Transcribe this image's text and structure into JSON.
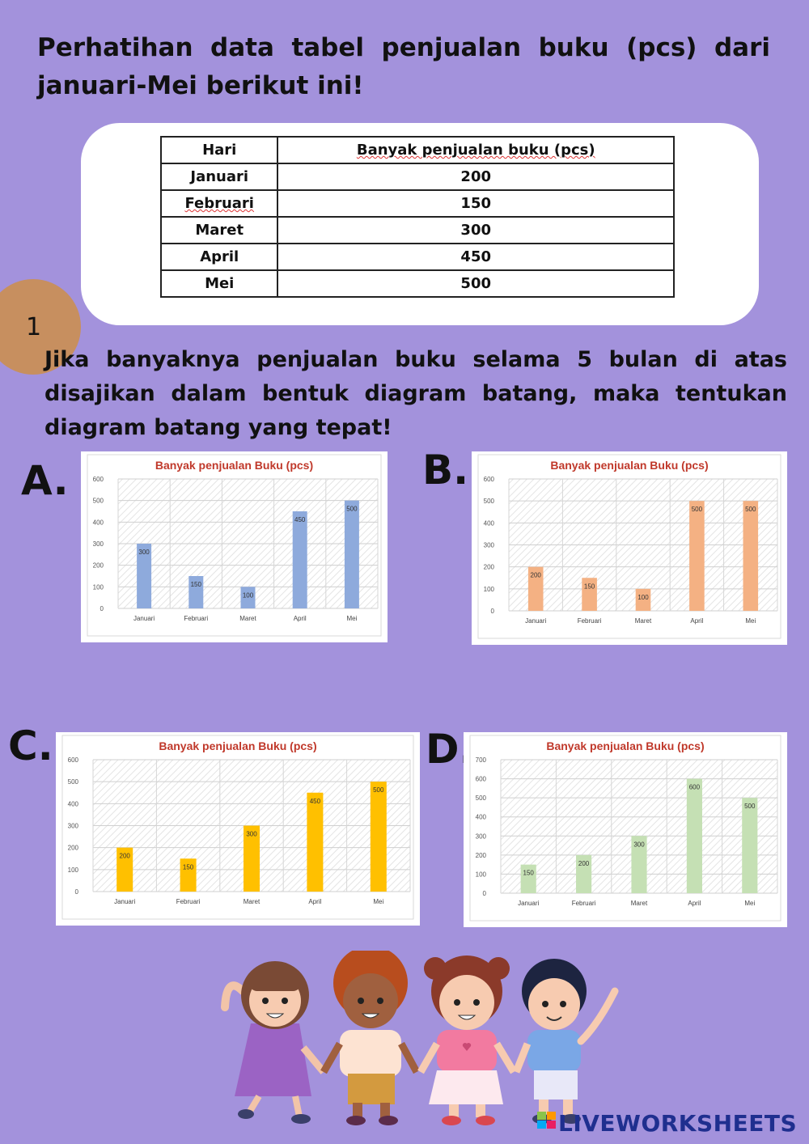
{
  "intro_text": "Perhatihan data tabel penjualan buku (pcs) dari januari-Mei berikut ini!",
  "table": {
    "headers": [
      "Hari",
      "Banyak penjualan buku (pcs)"
    ],
    "rows": [
      [
        "Januari",
        "200"
      ],
      [
        "Februari",
        "150"
      ],
      [
        "Maret",
        "300"
      ],
      [
        "April",
        "450"
      ],
      [
        "Mei",
        "500"
      ]
    ]
  },
  "question_number": "1",
  "question_text": "Jika banyaknya penjualan buku selama 5 bulan di atas disajikan dalam bentuk diagram batang, maka tentukan diagram batang yang tepat!",
  "options": [
    "A.",
    "B.",
    "C.",
    "D."
  ],
  "chart_data": [
    {
      "option": "A",
      "type": "bar",
      "title": "Banyak penjualan Buku (pcs)",
      "categories": [
        "Januari",
        "Februari",
        "Maret",
        "April",
        "Mei"
      ],
      "values": [
        300,
        150,
        100,
        450,
        500
      ],
      "ylim": [
        0,
        600
      ],
      "yticks": [
        0,
        100,
        200,
        300,
        400,
        500,
        600
      ],
      "color": "#8eaadc",
      "grid": true
    },
    {
      "option": "B",
      "type": "bar",
      "title": "Banyak penjualan Buku (pcs)",
      "categories": [
        "Januari",
        "Februari",
        "Maret",
        "April",
        "Mei"
      ],
      "values": [
        200,
        150,
        100,
        500,
        500
      ],
      "ylim": [
        0,
        600
      ],
      "yticks": [
        0,
        100,
        200,
        300,
        400,
        500,
        600
      ],
      "color": "#f4b183",
      "grid": true
    },
    {
      "option": "C",
      "type": "bar",
      "title": "Banyak penjualan Buku (pcs)",
      "categories": [
        "Januari",
        "Februari",
        "Maret",
        "April",
        "Mei"
      ],
      "values": [
        200,
        150,
        300,
        450,
        500
      ],
      "ylim": [
        0,
        600
      ],
      "yticks": [
        0,
        100,
        200,
        300,
        400,
        500,
        600
      ],
      "color": "#ffc000",
      "grid": true
    },
    {
      "option": "D",
      "type": "bar",
      "title": "Banyak penjualan Buku (pcs)",
      "categories": [
        "Januari",
        "Februari",
        "Maret",
        "April",
        "Mei"
      ],
      "values": [
        150,
        200,
        300,
        600,
        500
      ],
      "ylim": [
        0,
        700
      ],
      "yticks": [
        0,
        100,
        200,
        300,
        400,
        500,
        600,
        700
      ],
      "color": "#c5e0b4",
      "grid": true
    }
  ],
  "brand": "LIVEWORKSHEETS",
  "colors": {
    "background": "#a392dc",
    "title_red": "#c0392b",
    "number_circle": "#c78f5f"
  }
}
